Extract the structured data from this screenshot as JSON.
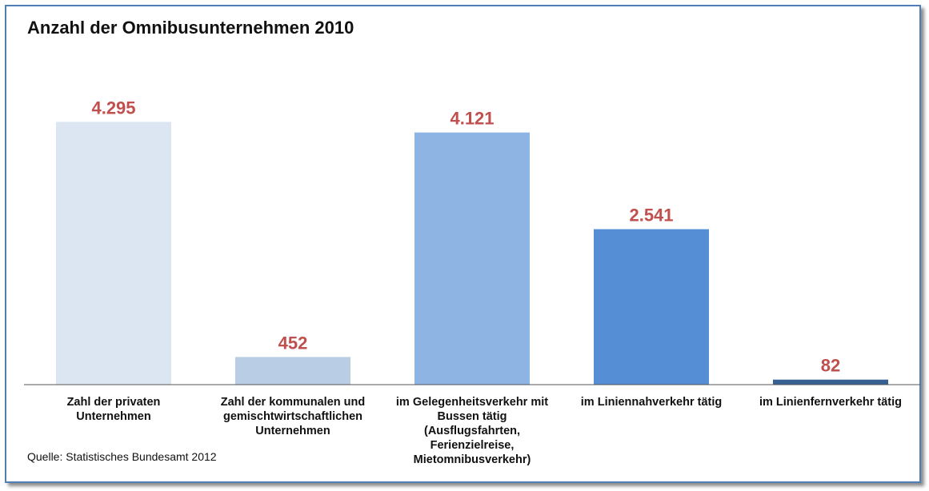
{
  "title": "Anzahl der Omnibusunternehmen 2010",
  "source": "Quelle: Statistisches Bundesamt 2012",
  "colors": {
    "value_label": "#c0504d",
    "bars": [
      "#dce6f2",
      "#b9cde5",
      "#8eb4e3",
      "#558ed5",
      "#366092"
    ],
    "baseline": "#555555"
  },
  "chart_data": {
    "type": "bar",
    "title": "Anzahl der Omnibusunternehmen 2010",
    "categories": [
      [
        "Zahl der privaten",
        "Unternehmen"
      ],
      [
        "Zahl der kommunalen und",
        "gemischtwirtschaftlichen",
        "Unternehmen"
      ],
      [
        "im Gelegenheitsverkehr mit",
        "Bussen tätig",
        "(Ausflugsfahrten,",
        "Ferienzielreise,",
        "Mietomnibusverkehr)"
      ],
      [
        "im Liniennahverkehr tätig"
      ],
      [
        "im Linienfernverkehr tätig"
      ]
    ],
    "values": [
      4295,
      452,
      4121,
      2541,
      82
    ],
    "value_labels": [
      "4.295",
      "452",
      "4.121",
      "2.541",
      "82"
    ],
    "ylim": [
      0,
      4300
    ],
    "grid": false,
    "legend": "none"
  }
}
